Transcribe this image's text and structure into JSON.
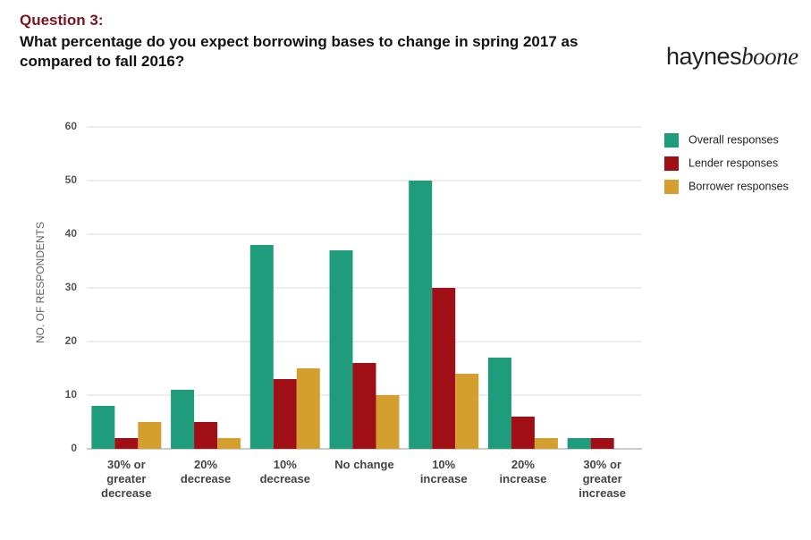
{
  "header": {
    "question": "Question 3:",
    "logo": [
      "haynes",
      "boone"
    ]
  },
  "chart_data": {
    "type": "bar",
    "title": "What percentage do you expect borrowing bases to change in spring 2017 as compared to fall 2016?",
    "ylabel": "NO. OF RESPONDENTS",
    "categories": [
      "30% or greater decrease",
      "20% decrease",
      "10% decrease",
      "No change",
      "10% increase",
      "20% increase",
      "30% or greater increase"
    ],
    "series": [
      {
        "name": "Overall responses",
        "color": "#1e9c7c",
        "values": [
          8,
          11,
          38,
          37,
          50,
          17,
          2
        ]
      },
      {
        "name": "Lender responses",
        "color": "#a10f16",
        "values": [
          2,
          5,
          13,
          16,
          30,
          6,
          2
        ]
      },
      {
        "name": "Borrower responses",
        "color": "#d3a02f",
        "values": [
          5,
          2,
          15,
          10,
          14,
          2,
          0
        ]
      }
    ],
    "ylim": [
      0,
      60
    ],
    "yticks": [
      0,
      10,
      20,
      30,
      40,
      50,
      60
    ],
    "grid": true,
    "legend": "right"
  }
}
